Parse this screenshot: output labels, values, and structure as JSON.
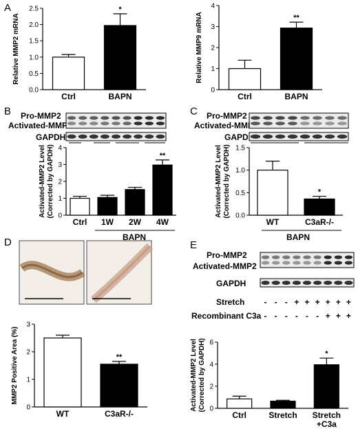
{
  "panel_letters": [
    "A",
    "B",
    "C",
    "D",
    "E"
  ],
  "blots": {
    "pro": "Pro-MMP2",
    "active": "Activated-MMP2",
    "gapdh": "GAPDH",
    "stretch_row": "Stretch",
    "c3a_row": "Recombinant C3a",
    "stretch_signs": [
      "-",
      "-",
      "-",
      "+",
      "+",
      "+",
      "+",
      "+",
      "+"
    ],
    "c3a_signs": [
      "-",
      "-",
      "-",
      "-",
      "-",
      "-",
      "+",
      "+",
      "+"
    ]
  },
  "group_labels": {
    "B": "BAPN",
    "C": "BAPN"
  },
  "colors": {
    "bar_control": "#ffffff",
    "bar_treated": "#000000",
    "stain_bg": "#f4eee8"
  },
  "chart_data": [
    {
      "id": "A-left",
      "type": "bar",
      "categories": [
        "Ctrl",
        "BAPN"
      ],
      "values": [
        1.0,
        1.97
      ],
      "errors": [
        0.08,
        0.36
      ],
      "significance": [
        "",
        "*"
      ],
      "ylabel": "Relative MMP2 mRNA",
      "ylim": [
        0,
        2.5
      ],
      "yticks": [
        "0.0",
        "0.5",
        "1.0",
        "1.5",
        "2.0",
        "2.5"
      ]
    },
    {
      "id": "A-right",
      "type": "bar",
      "categories": [
        "Ctrl",
        "BAPN"
      ],
      "values": [
        1.0,
        2.93
      ],
      "errors": [
        0.4,
        0.28
      ],
      "significance": [
        "",
        "**"
      ],
      "ylabel": "Relative MMP9 mRNA",
      "ylim": [
        0,
        4
      ],
      "yticks": [
        "0",
        "1",
        "2",
        "3",
        "4"
      ]
    },
    {
      "id": "B",
      "type": "bar",
      "categories": [
        "Ctrl",
        "1W",
        "2W",
        "4W"
      ],
      "values": [
        1.0,
        1.05,
        1.52,
        2.97
      ],
      "errors": [
        0.12,
        0.13,
        0.13,
        0.3
      ],
      "significance": [
        "",
        "",
        "",
        "**"
      ],
      "ylabel": "Activated-MMP2 Level\n(Corrected by GAPDH)",
      "ylim": [
        0,
        4
      ],
      "yticks": [
        "0",
        "1",
        "2",
        "3",
        "4"
      ]
    },
    {
      "id": "C",
      "type": "bar",
      "categories": [
        "WT",
        "C3aR-/-"
      ],
      "values": [
        1.0,
        0.36
      ],
      "errors": [
        0.2,
        0.06
      ],
      "significance": [
        "",
        "*"
      ],
      "ylabel": "Activated-MMP2 Level\n(Corrected by GAPDH)",
      "ylim": [
        0,
        1.5
      ],
      "yticks": [
        "0.0",
        "0.5",
        "1.0",
        "1.5"
      ]
    },
    {
      "id": "D",
      "type": "bar",
      "categories": [
        "WT",
        "C3aR-/-"
      ],
      "values": [
        2.5,
        1.55
      ],
      "errors": [
        0.1,
        0.1
      ],
      "significance": [
        "",
        "**"
      ],
      "ylabel": "MMP2 Positive Area (%)",
      "ylim": [
        0,
        3
      ],
      "yticks": [
        "0",
        "1",
        "2",
        "3"
      ]
    },
    {
      "id": "E",
      "type": "bar",
      "categories": [
        "Ctrl",
        "Stretch",
        "Stretch\n+C3a"
      ],
      "values": [
        0.85,
        0.65,
        3.95
      ],
      "errors": [
        0.25,
        0.08,
        0.6
      ],
      "significance": [
        "",
        "",
        "*"
      ],
      "ylabel": "Activated-MMP2 Level\n(Corrected by GAPDH)",
      "ylim": [
        0,
        6
      ],
      "yticks": [
        "0",
        "2",
        "4",
        "6"
      ]
    }
  ]
}
